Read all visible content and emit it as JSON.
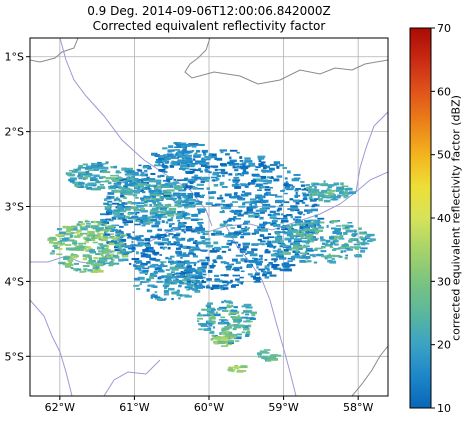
{
  "title": {
    "line1": "0.9 Deg. 2014-09-06T12:00:06.842000Z",
    "line2": "Corrected equivalent reflectivity factor"
  },
  "map": {
    "lon_ticks": [
      "62°W",
      "61°W",
      "60°W",
      "59°W",
      "58°W"
    ],
    "lat_ticks": [
      "1°S",
      "2°S",
      "3°S",
      "4°S",
      "5°S"
    ],
    "lon_range": [
      -62.4,
      -57.6
    ],
    "lat_range": [
      -0.75,
      -5.53
    ],
    "radar_center": [
      -60.0,
      -3.15
    ]
  },
  "colorbar": {
    "label": "corrected equivalent reflectivity factor (dBZ)",
    "ticks": [
      "10",
      "20",
      "30",
      "40",
      "50",
      "60",
      "70"
    ],
    "range": [
      10,
      70
    ],
    "colors": [
      "#0867b8",
      "#1d86c8",
      "#3ba3c4",
      "#5bb79c",
      "#7cc47f",
      "#a7d36a",
      "#d6e35a",
      "#eede36",
      "#f3b41d",
      "#ec8119",
      "#e0531b",
      "#c92a13",
      "#a90b06"
    ]
  }
}
